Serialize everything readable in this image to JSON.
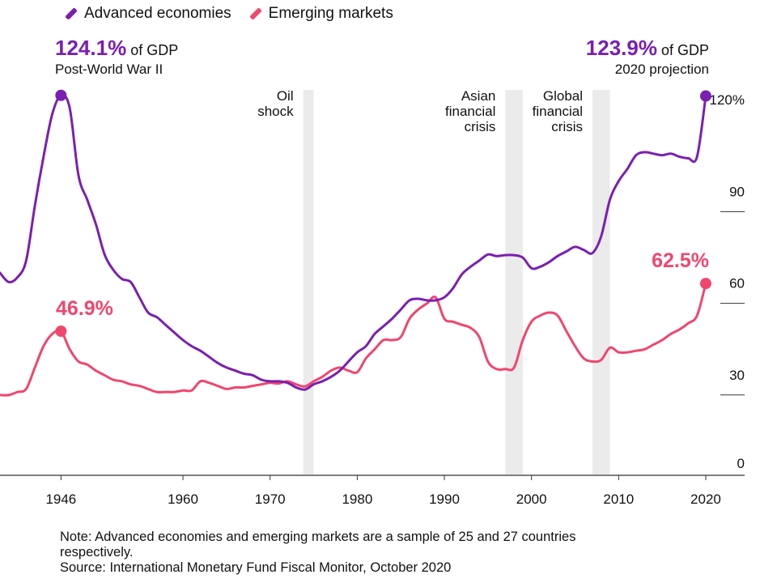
{
  "legend": [
    {
      "name": "Advanced economies",
      "color": "#7a1fb0"
    },
    {
      "name": "Emerging markets",
      "color": "#f0466e"
    }
  ],
  "annotations": {
    "adv_peak_value": "124.1%",
    "adv_peak_unit": " of GDP",
    "adv_peak_caption": "Post-World War II",
    "adv_end_value": "123.9%",
    "adv_end_unit": " of GDP",
    "adv_end_caption": "2020 projection",
    "em_peak_value": "46.9%",
    "em_end_value": "62.5%"
  },
  "shaded_events": [
    {
      "label_lines": [
        "Oil",
        "shock"
      ],
      "x_start": 1973.8,
      "x_end": 1975
    },
    {
      "label_lines": [
        "Asian",
        "financial",
        "crisis"
      ],
      "x_start": 1997,
      "x_end": 1999
    },
    {
      "label_lines": [
        "Global",
        "financial",
        "crisis"
      ],
      "x_start": 2007,
      "x_end": 2009
    }
  ],
  "note": {
    "line1": "Note: Advanced economies and emerging markets are a sample of 25 and 27 countries",
    "line2": "respectively.",
    "line3": "Source: International Monetary Fund Fiscal Monitor, October 2020"
  },
  "chart_data": {
    "type": "line",
    "xlim": [
      1939,
      2022
    ],
    "ylim": [
      0,
      130
    ],
    "x_ticks": [
      1946,
      1960,
      1970,
      1980,
      1990,
      2000,
      2010,
      2020
    ],
    "y_ticks": [
      {
        "value": 0,
        "label": "0"
      },
      {
        "value": 30,
        "label": "30"
      },
      {
        "value": 60,
        "label": "60"
      },
      {
        "value": 90,
        "label": "90"
      },
      {
        "value": 120,
        "label": "120%"
      }
    ],
    "series": [
      {
        "name": "Advanced economies",
        "color": "#7a1fb0",
        "points": [
          [
            1939,
            66
          ],
          [
            1940,
            63
          ],
          [
            1941,
            64.5
          ],
          [
            1942,
            70
          ],
          [
            1943,
            88
          ],
          [
            1944,
            104
          ],
          [
            1945,
            118
          ],
          [
            1946,
            124.1
          ],
          [
            1947,
            120
          ],
          [
            1948,
            98
          ],
          [
            1949,
            90
          ],
          [
            1950,
            82
          ],
          [
            1951,
            72
          ],
          [
            1952,
            67
          ],
          [
            1953,
            64
          ],
          [
            1954,
            63
          ],
          [
            1955,
            58
          ],
          [
            1956,
            53
          ],
          [
            1957,
            51.5
          ],
          [
            1958,
            49
          ],
          [
            1959,
            46.5
          ],
          [
            1960,
            44
          ],
          [
            1961,
            42
          ],
          [
            1962,
            40.5
          ],
          [
            1963,
            38.5
          ],
          [
            1964,
            36.5
          ],
          [
            1965,
            35
          ],
          [
            1966,
            34
          ],
          [
            1967,
            33
          ],
          [
            1968,
            32.5
          ],
          [
            1969,
            31
          ],
          [
            1970,
            30.5
          ],
          [
            1971,
            30.5
          ],
          [
            1972,
            30
          ],
          [
            1973,
            28.5
          ],
          [
            1974,
            27.8
          ],
          [
            1975,
            29.5
          ],
          [
            1976,
            30.5
          ],
          [
            1977,
            32
          ],
          [
            1978,
            34
          ],
          [
            1979,
            37
          ],
          [
            1980,
            40
          ],
          [
            1981,
            42
          ],
          [
            1982,
            46
          ],
          [
            1983,
            48.5
          ],
          [
            1984,
            51
          ],
          [
            1985,
            54
          ],
          [
            1986,
            57
          ],
          [
            1987,
            57.5
          ],
          [
            1988,
            57
          ],
          [
            1989,
            57
          ],
          [
            1990,
            58
          ],
          [
            1991,
            61
          ],
          [
            1992,
            65.5
          ],
          [
            1993,
            68
          ],
          [
            1994,
            70
          ],
          [
            1995,
            72
          ],
          [
            1996,
            71.5
          ],
          [
            1997,
            71.8
          ],
          [
            1998,
            71.8
          ],
          [
            1999,
            71
          ],
          [
            2000,
            67.5
          ],
          [
            2001,
            68
          ],
          [
            2002,
            69.5
          ],
          [
            2003,
            71.5
          ],
          [
            2004,
            73
          ],
          [
            2005,
            74.5
          ],
          [
            2006,
            73.5
          ],
          [
            2007,
            72.5
          ],
          [
            2008,
            78
          ],
          [
            2009,
            90
          ],
          [
            2010,
            96
          ],
          [
            2011,
            100
          ],
          [
            2012,
            104.5
          ],
          [
            2013,
            105.5
          ],
          [
            2014,
            105
          ],
          [
            2015,
            104.5
          ],
          [
            2016,
            105
          ],
          [
            2017,
            104
          ],
          [
            2018,
            103.5
          ],
          [
            2019,
            104
          ],
          [
            2020,
            123.9
          ]
        ]
      },
      {
        "name": "Emerging markets",
        "color": "#f0466e",
        "points": [
          [
            1939,
            26
          ],
          [
            1940,
            26
          ],
          [
            1941,
            27
          ],
          [
            1942,
            28
          ],
          [
            1943,
            35
          ],
          [
            1944,
            42
          ],
          [
            1945,
            46
          ],
          [
            1946,
            46.9
          ],
          [
            1947,
            41
          ],
          [
            1948,
            37
          ],
          [
            1949,
            36
          ],
          [
            1950,
            34
          ],
          [
            1951,
            32.5
          ],
          [
            1952,
            31
          ],
          [
            1953,
            30.5
          ],
          [
            1954,
            29.5
          ],
          [
            1955,
            29
          ],
          [
            1956,
            28
          ],
          [
            1957,
            27
          ],
          [
            1958,
            27
          ],
          [
            1959,
            27
          ],
          [
            1960,
            27.5
          ],
          [
            1961,
            27.5
          ],
          [
            1962,
            30.5
          ],
          [
            1963,
            30
          ],
          [
            1964,
            29
          ],
          [
            1965,
            28
          ],
          [
            1966,
            28.5
          ],
          [
            1967,
            28.5
          ],
          [
            1968,
            29
          ],
          [
            1969,
            29.5
          ],
          [
            1970,
            30
          ],
          [
            1971,
            29.8
          ],
          [
            1972,
            30.5
          ],
          [
            1973,
            29.5
          ],
          [
            1974,
            28.8
          ],
          [
            1975,
            30.5
          ],
          [
            1976,
            32
          ],
          [
            1977,
            34
          ],
          [
            1978,
            35
          ],
          [
            1979,
            34
          ],
          [
            1980,
            33.5
          ],
          [
            1981,
            38
          ],
          [
            1982,
            41
          ],
          [
            1983,
            44
          ],
          [
            1984,
            44
          ],
          [
            1985,
            45
          ],
          [
            1986,
            51
          ],
          [
            1987,
            54
          ],
          [
            1988,
            56
          ],
          [
            1989,
            58
          ],
          [
            1990,
            51
          ],
          [
            1991,
            50
          ],
          [
            1992,
            49
          ],
          [
            1993,
            48
          ],
          [
            1994,
            45
          ],
          [
            1995,
            37
          ],
          [
            1996,
            34.5
          ],
          [
            1997,
            34.5
          ],
          [
            1998,
            35
          ],
          [
            1999,
            44
          ],
          [
            2000,
            50
          ],
          [
            2001,
            52
          ],
          [
            2002,
            53
          ],
          [
            2003,
            52
          ],
          [
            2004,
            47
          ],
          [
            2005,
            42
          ],
          [
            2006,
            38
          ],
          [
            2007,
            37
          ],
          [
            2008,
            37.5
          ],
          [
            2009,
            41.5
          ],
          [
            2010,
            40
          ],
          [
            2011,
            40
          ],
          [
            2012,
            40.5
          ],
          [
            2013,
            41
          ],
          [
            2014,
            42.5
          ],
          [
            2015,
            44
          ],
          [
            2016,
            46
          ],
          [
            2017,
            47.5
          ],
          [
            2018,
            49.5
          ],
          [
            2019,
            52
          ],
          [
            2020,
            62.5
          ]
        ]
      }
    ]
  }
}
